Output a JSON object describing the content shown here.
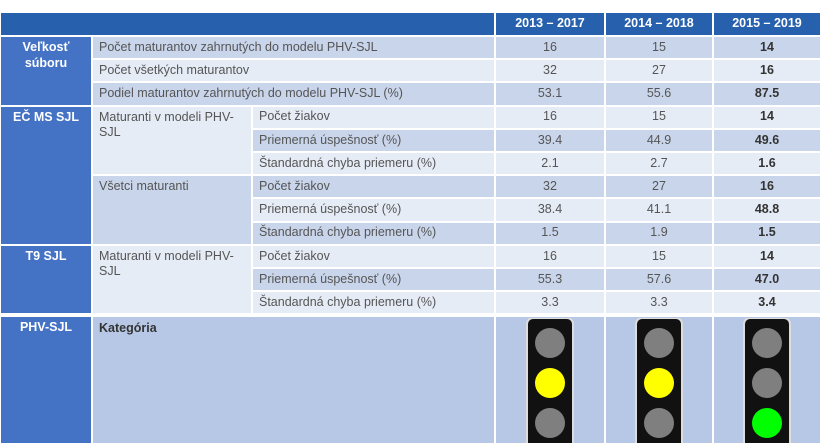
{
  "header": {
    "periods": [
      "2013 – 2017",
      "2014 – 2018",
      "2015 – 2019"
    ]
  },
  "groups": [
    {
      "label": "Veľkosť súboru",
      "rows": [
        {
          "label": "Počet maturantov zahrnutých do modelu PHV-SJL",
          "values": [
            "16",
            "15",
            "14"
          ]
        },
        {
          "label": "Počet všetkých maturantov",
          "values": [
            "32",
            "27",
            "16"
          ]
        },
        {
          "label": "Podiel maturantov zahrnutých do modelu PHV-SJL (%)",
          "values": [
            "53.1",
            "55.6",
            "87.5"
          ]
        }
      ]
    },
    {
      "label": "EČ MS SJL",
      "subgroups": [
        {
          "label": "Maturanti v modeli PHV-SJL",
          "rows": [
            {
              "label": "Počet žiakov",
              "values": [
                "16",
                "15",
                "14"
              ]
            },
            {
              "label": "Priemerná úspešnosť (%)",
              "values": [
                "39.4",
                "44.9",
                "49.6"
              ]
            },
            {
              "label": "Štandardná chyba priemeru (%)",
              "values": [
                "2.1",
                "2.7",
                "1.6"
              ]
            }
          ]
        },
        {
          "label": "Všetci maturanti",
          "rows": [
            {
              "label": "Počet žiakov",
              "values": [
                "32",
                "27",
                "16"
              ]
            },
            {
              "label": "Priemerná úspešnosť (%)",
              "values": [
                "38.4",
                "41.1",
                "48.8"
              ]
            },
            {
              "label": "Štandardná chyba priemeru (%)",
              "values": [
                "1.5",
                "1.9",
                "1.5"
              ]
            }
          ]
        }
      ]
    },
    {
      "label": "T9 SJL",
      "subgroups": [
        {
          "label": "Maturanti v modeli PHV-SJL",
          "rows": [
            {
              "label": "Počet žiakov",
              "values": [
                "16",
                "15",
                "14"
              ]
            },
            {
              "label": "Priemerná úspešnosť (%)",
              "values": [
                "55.3",
                "57.6",
                "47.0"
              ]
            },
            {
              "label": "Štandardná chyba priemeru (%)",
              "values": [
                "3.3",
                "3.3",
                "3.4"
              ]
            }
          ]
        }
      ]
    }
  ],
  "category": {
    "group": "PHV-SJL",
    "label": "Kategória",
    "lights": [
      [
        "#7f7f7f",
        "#ffff00",
        "#7f7f7f"
      ],
      [
        "#7f7f7f",
        "#ffff00",
        "#7f7f7f"
      ],
      [
        "#7f7f7f",
        "#7f7f7f",
        "#00ff00"
      ]
    ]
  }
}
